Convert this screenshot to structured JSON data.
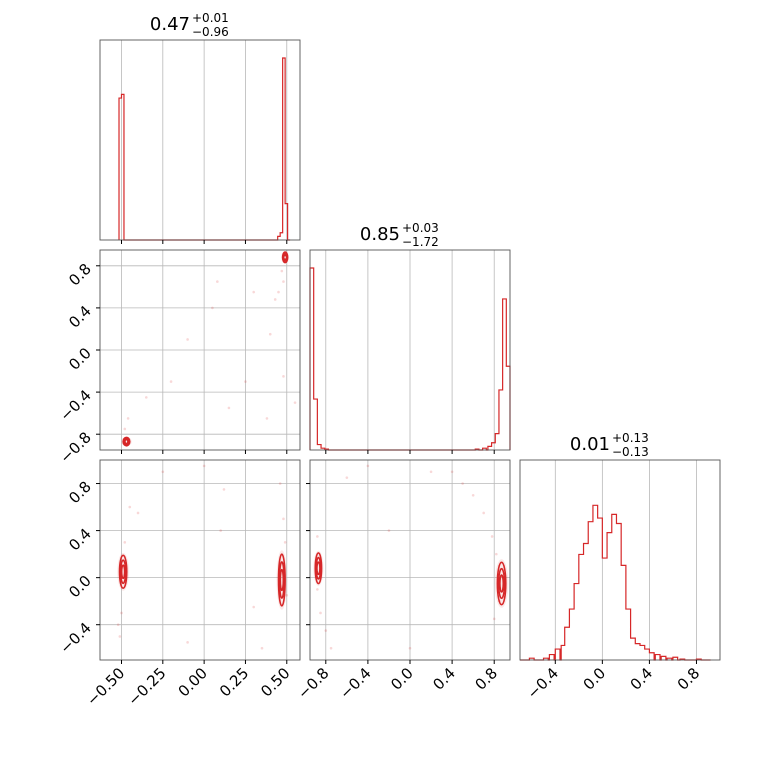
{
  "chart_data": {
    "type": "corner",
    "color": "#d62728",
    "titles": [
      {
        "median": "0.47",
        "plus": "+0.01",
        "minus": "−0.96"
      },
      {
        "median": "0.85",
        "plus": "+0.03",
        "minus": "−1.72"
      },
      {
        "median": "0.01",
        "plus": "+0.13",
        "minus": "−0.13"
      }
    ],
    "ranges": [
      [
        -0.63,
        0.58
      ],
      [
        -0.95,
        0.95
      ],
      [
        -0.7,
        1.0
      ]
    ],
    "ticks": [
      {
        "values": [
          -0.5,
          -0.25,
          0.0,
          0.25,
          0.5
        ],
        "labels": [
          "−0.50",
          "−0.25",
          "0.00",
          "0.25",
          "0.50"
        ]
      },
      {
        "values": [
          -0.8,
          -0.4,
          0.0,
          0.4,
          0.8
        ],
        "labels": [
          "−0.8",
          "−0.4",
          "0.0",
          "0.4",
          "0.8"
        ]
      },
      {
        "values": [
          -0.4,
          0.0,
          0.4,
          0.8
        ],
        "labels": [
          "−0.4",
          "0.0",
          "0.4",
          "0.8"
        ]
      }
    ],
    "y_ranges": [
      null,
      [
        -0.95,
        0.95
      ],
      [
        -0.7,
        1.0
      ]
    ],
    "histograms": [
      {
        "bins": [
          [
            -0.515,
            0.78
          ],
          [
            -0.5,
            0.8
          ],
          [
            -0.485,
            0.0
          ],
          [
            -0.47,
            0.0
          ],
          [
            0.43,
            0.0
          ],
          [
            0.445,
            0.02
          ],
          [
            0.46,
            0.04
          ],
          [
            0.475,
            1.0
          ],
          [
            0.49,
            0.2
          ],
          [
            0.505,
            0.0
          ]
        ],
        "bin_width": 0.015
      },
      {
        "bins": [
          [
            -0.95,
            1.0
          ],
          [
            -0.915,
            0.28
          ],
          [
            -0.88,
            0.03
          ],
          [
            -0.845,
            0.01
          ],
          [
            -0.81,
            0.005
          ],
          [
            -0.5,
            0.0
          ],
          [
            0.0,
            0.0
          ],
          [
            0.5,
            0.0
          ],
          [
            0.62,
            0.005
          ],
          [
            0.69,
            0.01
          ],
          [
            0.74,
            0.02
          ],
          [
            0.775,
            0.04
          ],
          [
            0.81,
            0.09
          ],
          [
            0.845,
            0.33
          ],
          [
            0.88,
            0.83
          ],
          [
            0.915,
            0.46
          ]
        ],
        "bin_width": 0.035
      },
      {
        "bins": [
          [
            -0.7,
            0.0
          ],
          [
            -0.62,
            0.01
          ],
          [
            -0.56,
            0.0
          ],
          [
            -0.5,
            0.01
          ],
          [
            -0.45,
            0.03
          ],
          [
            -0.4,
            0.06
          ],
          [
            -0.35,
            0.08
          ],
          [
            -0.32,
            0.18
          ],
          [
            -0.28,
            0.28
          ],
          [
            -0.24,
            0.42
          ],
          [
            -0.2,
            0.58
          ],
          [
            -0.16,
            0.64
          ],
          [
            -0.12,
            0.76
          ],
          [
            -0.08,
            0.85
          ],
          [
            -0.04,
            0.78
          ],
          [
            0.0,
            0.56
          ],
          [
            0.04,
            0.7
          ],
          [
            0.08,
            0.8
          ],
          [
            0.12,
            0.75
          ],
          [
            0.16,
            0.52
          ],
          [
            0.2,
            0.28
          ],
          [
            0.24,
            0.12
          ],
          [
            0.28,
            0.09
          ],
          [
            0.32,
            0.08
          ],
          [
            0.36,
            0.06
          ],
          [
            0.4,
            0.04
          ],
          [
            0.45,
            0.03
          ],
          [
            0.5,
            0.02
          ],
          [
            0.55,
            0.01
          ],
          [
            0.6,
            0.015
          ],
          [
            0.66,
            0.005
          ],
          [
            0.72,
            0.0
          ],
          [
            0.8,
            0.005
          ],
          [
            0.88,
            0.0
          ]
        ],
        "bin_width": 0.04
      }
    ],
    "scatter": [
      {
        "x_param": 0,
        "y_param": 1,
        "points": [
          [
            0.49,
            0.86
          ],
          [
            0.47,
            0.75
          ],
          [
            0.48,
            0.65
          ],
          [
            0.45,
            0.55
          ],
          [
            0.43,
            0.48
          ],
          [
            0.4,
            0.15
          ],
          [
            0.48,
            -0.25
          ],
          [
            0.38,
            -0.65
          ],
          [
            -0.48,
            -0.75
          ],
          [
            -0.46,
            -0.65
          ],
          [
            -0.1,
            0.1
          ],
          [
            0.05,
            0.4
          ],
          [
            -0.2,
            -0.3
          ],
          [
            0.15,
            -0.55
          ],
          [
            0.08,
            0.65
          ],
          [
            -0.35,
            -0.45
          ],
          [
            0.25,
            -0.3
          ],
          [
            0.55,
            -0.5
          ],
          [
            0.3,
            0.55
          ],
          [
            -0.47,
            -0.85
          ],
          [
            0.5,
            0.9
          ]
        ]
      },
      {
        "x_param": 0,
        "y_param": 2,
        "points": [
          [
            -0.52,
            -0.4
          ],
          [
            -0.5,
            -0.3
          ],
          [
            -0.51,
            -0.5
          ],
          [
            -0.48,
            0.3
          ],
          [
            -0.45,
            0.6
          ],
          [
            -0.25,
            0.9
          ],
          [
            0.0,
            0.95
          ],
          [
            0.1,
            0.4
          ],
          [
            -0.1,
            -0.55
          ],
          [
            0.48,
            0.5
          ],
          [
            0.46,
            0.8
          ],
          [
            0.49,
            0.3
          ],
          [
            0.5,
            -0.15
          ],
          [
            0.35,
            -0.6
          ],
          [
            0.12,
            0.75
          ],
          [
            -0.4,
            0.55
          ],
          [
            0.3,
            -0.25
          ],
          [
            -0.48,
            0.02
          ]
        ]
      },
      {
        "x_param": 1,
        "y_param": 2,
        "points": [
          [
            -0.88,
            -0.1
          ],
          [
            -0.85,
            -0.3
          ],
          [
            -0.8,
            -0.45
          ],
          [
            -0.75,
            -0.6
          ],
          [
            -0.88,
            0.35
          ],
          [
            -0.6,
            0.85
          ],
          [
            -0.4,
            0.95
          ],
          [
            0.4,
            0.9
          ],
          [
            0.6,
            0.7
          ],
          [
            0.7,
            0.55
          ],
          [
            0.78,
            0.35
          ],
          [
            0.82,
            0.2
          ],
          [
            0.85,
            -0.2
          ],
          [
            0.8,
            -0.35
          ],
          [
            0.2,
            0.9
          ],
          [
            -0.2,
            0.4
          ],
          [
            0.0,
            -0.6
          ],
          [
            0.5,
            0.8
          ]
        ]
      }
    ],
    "contours": [
      {
        "x_param": 0,
        "y_param": 1,
        "blobs": [
          [
            -0.47,
            -0.87,
            0.02,
            0.04
          ],
          [
            0.49,
            0.88,
            0.015,
            0.05
          ]
        ]
      },
      {
        "x_param": 0,
        "y_param": 2,
        "blobs": [
          [
            -0.49,
            0.05,
            0.022,
            0.14
          ],
          [
            0.47,
            -0.02,
            0.02,
            0.22
          ]
        ]
      },
      {
        "x_param": 1,
        "y_param": 2,
        "blobs": [
          [
            -0.87,
            0.08,
            0.03,
            0.13
          ],
          [
            0.87,
            -0.05,
            0.04,
            0.18
          ]
        ]
      }
    ]
  }
}
